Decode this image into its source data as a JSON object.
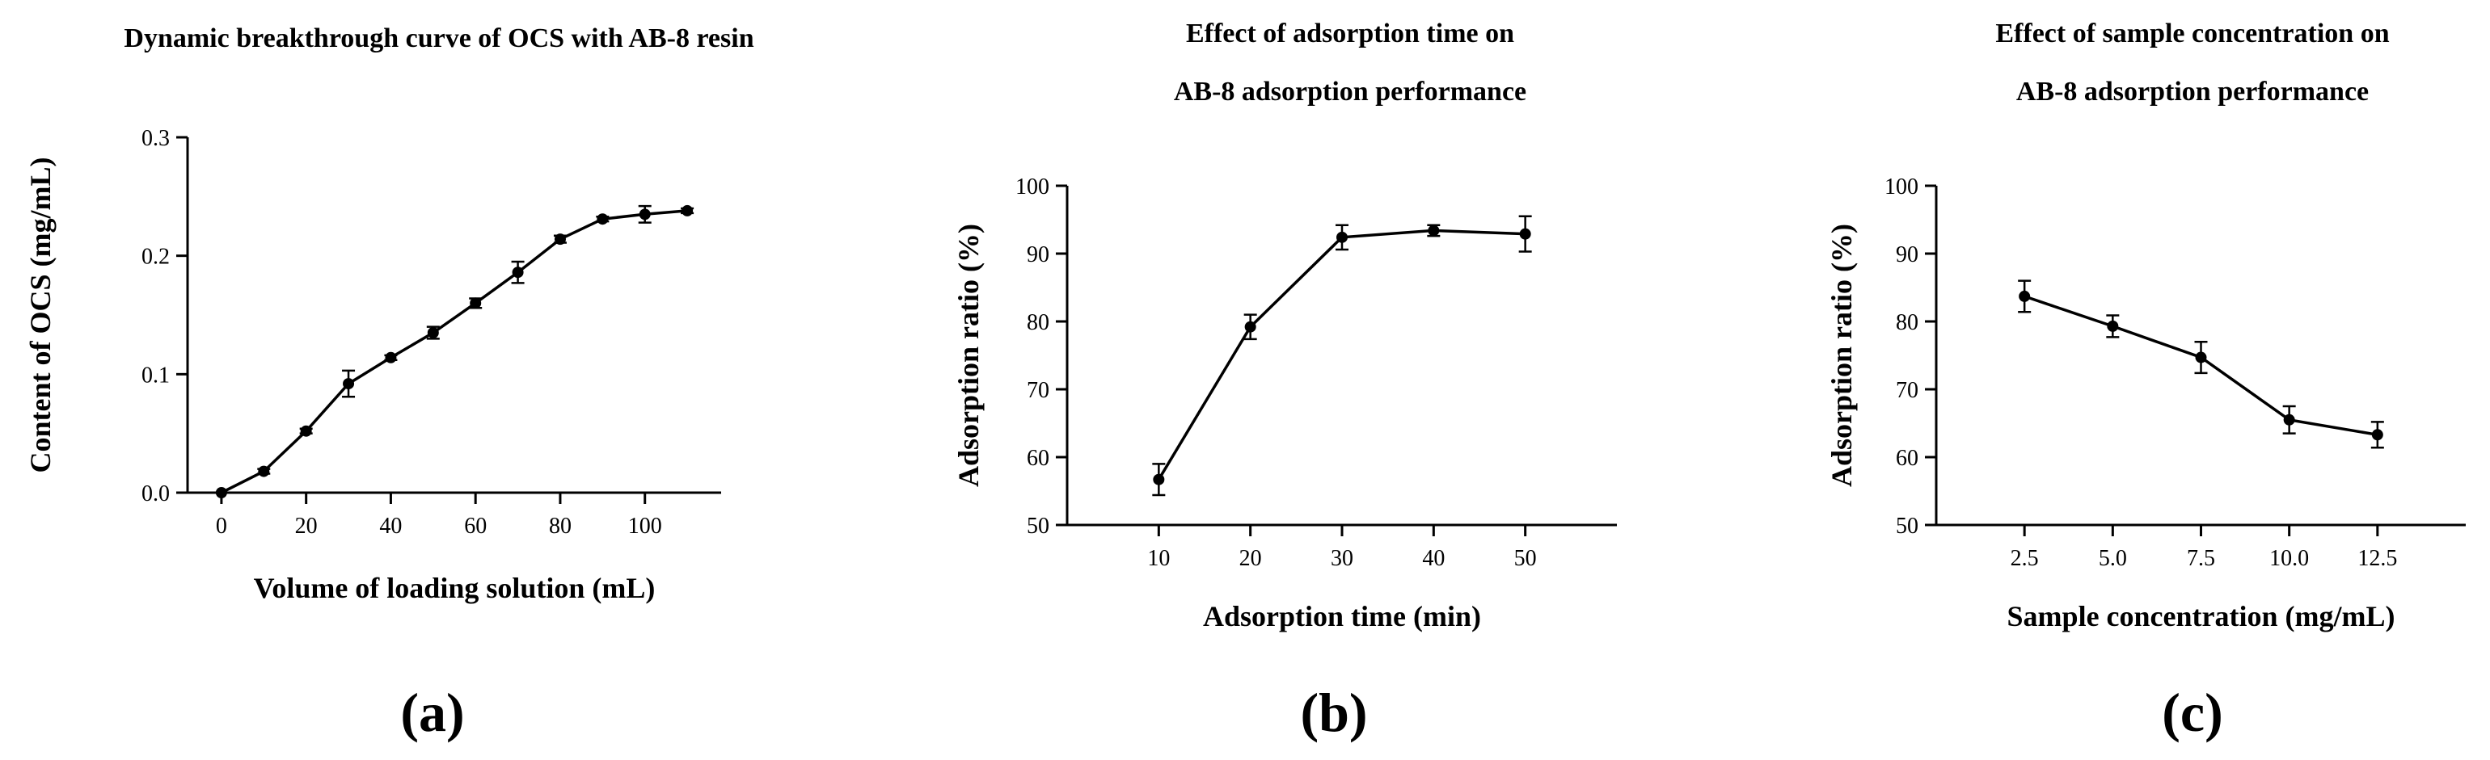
{
  "chart_data": [
    {
      "id": "a",
      "type": "line",
      "panel_label": "(a)",
      "title_lines": [
        "Dynamic breakthrough curve of OCS with AB-8 resin"
      ],
      "xlabel": "Volume of loading solution (mL)",
      "ylabel": "Content of OCS (mg/mL)",
      "xlim": [
        -8,
        118
      ],
      "ylim": [
        0,
        0.3
      ],
      "xticks": [
        0,
        20,
        40,
        60,
        80,
        100
      ],
      "xtick_labels": [
        "0",
        "20",
        "40",
        "60",
        "80",
        "100"
      ],
      "yticks": [
        0,
        0.1,
        0.2,
        0.3
      ],
      "ytick_labels": [
        "0.0",
        "0.1",
        "0.2",
        "0.3"
      ],
      "series": [
        {
          "name": "OCS content",
          "x": [
            0,
            10,
            20,
            30,
            40,
            50,
            60,
            70,
            80,
            90,
            100,
            110
          ],
          "values": [
            0.0,
            0.018,
            0.052,
            0.092,
            0.114,
            0.135,
            0.16,
            0.186,
            0.214,
            0.231,
            0.235,
            0.238
          ],
          "errors": [
            0,
            0.002,
            0.002,
            0.011,
            0.002,
            0.005,
            0.004,
            0.009,
            0.003,
            0.002,
            0.007,
            0.002
          ]
        }
      ]
    },
    {
      "id": "b",
      "type": "line",
      "panel_label": "(b)",
      "title_lines": [
        "Effect of adsorption time on",
        "AB-8 adsorption performance"
      ],
      "xlabel": "Adsorption time (min)",
      "ylabel": "Adsorption ratio (%)",
      "xlim": [
        0,
        60
      ],
      "ylim": [
        50,
        100
      ],
      "xticks": [
        10,
        20,
        30,
        40,
        50
      ],
      "xtick_labels": [
        "10",
        "20",
        "30",
        "40",
        "50"
      ],
      "yticks": [
        50,
        60,
        70,
        80,
        90,
        100
      ],
      "ytick_labels": [
        "50",
        "60",
        "70",
        "80",
        "90",
        "100"
      ],
      "series": [
        {
          "name": "Adsorption ratio",
          "x": [
            10,
            20,
            30,
            40,
            50
          ],
          "values": [
            56.7,
            79.2,
            92.4,
            93.4,
            92.9
          ],
          "errors": [
            2.3,
            1.8,
            1.8,
            0.8,
            2.6
          ]
        }
      ]
    },
    {
      "id": "c",
      "type": "line",
      "panel_label": "(c)",
      "title_lines": [
        "Effect of sample concentration on",
        "AB-8 adsorption performance"
      ],
      "xlabel": "Sample concentration (mg/mL)",
      "ylabel": "Adsorption ratio (%)",
      "xlim": [
        0,
        15
      ],
      "ylim": [
        50,
        100
      ],
      "xticks": [
        2.5,
        5.0,
        7.5,
        10.0,
        12.5
      ],
      "xtick_labels": [
        "2.5",
        "5.0",
        "7.5",
        "10.0",
        "12.5"
      ],
      "yticks": [
        50,
        60,
        70,
        80,
        90,
        100
      ],
      "ytick_labels": [
        "50",
        "60",
        "70",
        "80",
        "90",
        "100"
      ],
      "series": [
        {
          "name": "Adsorption ratio",
          "x": [
            2.5,
            5.0,
            7.5,
            10.0,
            12.5
          ],
          "values": [
            83.7,
            79.3,
            74.7,
            65.5,
            63.3
          ],
          "errors": [
            2.3,
            1.6,
            2.3,
            2.0,
            1.9
          ]
        }
      ]
    }
  ]
}
